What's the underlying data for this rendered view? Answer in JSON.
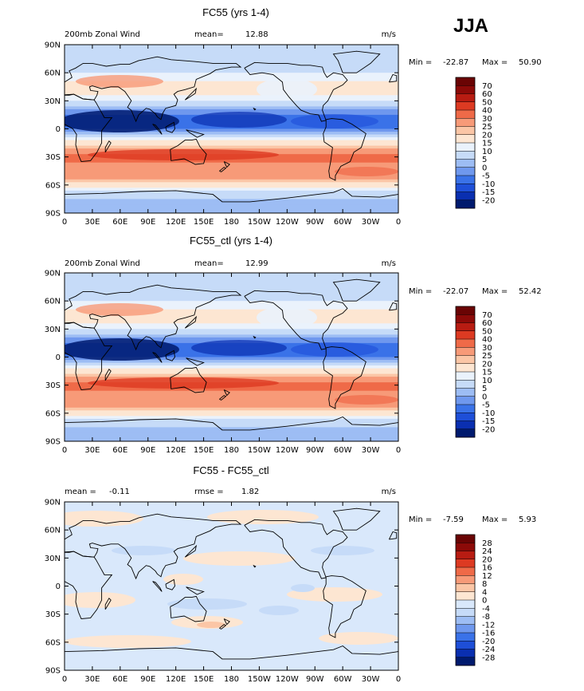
{
  "season": "JJA",
  "chart_data": [
    {
      "type": "heatmap",
      "title": "FC55 (yrs 1-4)",
      "left_label": "200mb Zonal Wind",
      "stat_label": "mean=",
      "stat_value": "12.88",
      "units": "m/s",
      "min_label": "Min =",
      "min_value": "-22.87",
      "max_label": "Max =",
      "max_value": "50.90",
      "levels": [
        "70",
        "60",
        "50",
        "40",
        "30",
        "25",
        "20",
        "15",
        "10",
        "5",
        "0",
        "-5",
        "-10",
        "-15",
        "-20"
      ],
      "x_ticks": [
        "0",
        "30E",
        "60E",
        "90E",
        "120E",
        "150E",
        "180",
        "150W",
        "120W",
        "90W",
        "60W",
        "30W",
        "0"
      ],
      "y_ticks": [
        "90N",
        "60N",
        "30N",
        "0",
        "30S",
        "60S",
        "90S"
      ],
      "xlim": [
        0,
        360
      ],
      "ylim": [
        -90,
        90
      ],
      "zonal_profile": [
        {
          "lat": 90,
          "value": 5
        },
        {
          "lat": 75,
          "value": 5
        },
        {
          "lat": 60,
          "value": 10
        },
        {
          "lat": 50,
          "value": 15
        },
        {
          "lat": 42,
          "value": 20
        },
        {
          "lat": 35,
          "value": 15
        },
        {
          "lat": 25,
          "value": 5
        },
        {
          "lat": 15,
          "value": -5
        },
        {
          "lat": 5,
          "value": -10
        },
        {
          "lat": 0,
          "value": -5
        },
        {
          "lat": -10,
          "value": 10
        },
        {
          "lat": -20,
          "value": 25
        },
        {
          "lat": -28,
          "value": 30
        },
        {
          "lat": -35,
          "value": 30
        },
        {
          "lat": -45,
          "value": 25
        },
        {
          "lat": -55,
          "value": 25
        },
        {
          "lat": -65,
          "value": 10
        },
        {
          "lat": -75,
          "value": 5
        },
        {
          "lat": -90,
          "value": 0
        }
      ]
    },
    {
      "type": "heatmap",
      "title": "FC55_ctl (yrs 1-4)",
      "left_label": "200mb Zonal Wind",
      "stat_label": "mean=",
      "stat_value": "12.99",
      "units": "m/s",
      "min_label": "Min =",
      "min_value": "-22.07",
      "max_label": "Max =",
      "max_value": "52.42",
      "levels": [
        "70",
        "60",
        "50",
        "40",
        "30",
        "25",
        "20",
        "15",
        "10",
        "5",
        "0",
        "-5",
        "-10",
        "-15",
        "-20"
      ],
      "x_ticks": [
        "0",
        "30E",
        "60E",
        "90E",
        "120E",
        "150E",
        "180",
        "150W",
        "120W",
        "90W",
        "60W",
        "30W",
        "0"
      ],
      "y_ticks": [
        "90N",
        "60N",
        "30N",
        "0",
        "30S",
        "60S",
        "90S"
      ],
      "xlim": [
        0,
        360
      ],
      "ylim": [
        -90,
        90
      ],
      "zonal_profile": [
        {
          "lat": 90,
          "value": 5
        },
        {
          "lat": 75,
          "value": 5
        },
        {
          "lat": 60,
          "value": 10
        },
        {
          "lat": 50,
          "value": 15
        },
        {
          "lat": 42,
          "value": 20
        },
        {
          "lat": 35,
          "value": 15
        },
        {
          "lat": 25,
          "value": 5
        },
        {
          "lat": 15,
          "value": -5
        },
        {
          "lat": 5,
          "value": -10
        },
        {
          "lat": 0,
          "value": -5
        },
        {
          "lat": -10,
          "value": 10
        },
        {
          "lat": -20,
          "value": 25
        },
        {
          "lat": -28,
          "value": 30
        },
        {
          "lat": -35,
          "value": 30
        },
        {
          "lat": -45,
          "value": 25
        },
        {
          "lat": -55,
          "value": 25
        },
        {
          "lat": -65,
          "value": 10
        },
        {
          "lat": -75,
          "value": 5
        },
        {
          "lat": -90,
          "value": 0
        }
      ]
    },
    {
      "type": "heatmap",
      "title": "FC55 - FC55_ctl",
      "left_label": "mean =",
      "left_value": "-0.11",
      "stat_label": "rmse =",
      "stat_value": "1.82",
      "units": "m/s",
      "min_label": "Min =",
      "min_value": "-7.59",
      "max_label": "Max =",
      "max_value": "5.93",
      "levels": [
        "28",
        "24",
        "20",
        "16",
        "12",
        "8",
        "4",
        "0",
        "-4",
        "-8",
        "-12",
        "-16",
        "-20",
        "-24",
        "-28"
      ],
      "x_ticks": [
        "0",
        "30E",
        "60E",
        "90E",
        "120E",
        "150E",
        "180",
        "150W",
        "120W",
        "90W",
        "60W",
        "30W",
        "0"
      ],
      "y_ticks": [
        "90N",
        "60N",
        "30N",
        "0",
        "30S",
        "60S",
        "90S"
      ],
      "xlim": [
        0,
        360
      ],
      "ylim": [
        -90,
        90
      ],
      "zonal_profile": [
        {
          "lat": 90,
          "value": 0
        },
        {
          "lat": 60,
          "value": -2
        },
        {
          "lat": 30,
          "value": -2
        },
        {
          "lat": 0,
          "value": -2
        },
        {
          "lat": -30,
          "value": 0
        },
        {
          "lat": -60,
          "value": -2
        },
        {
          "lat": -90,
          "value": 0
        }
      ]
    }
  ],
  "colors": {
    "abs_scale": [
      "#001a6e",
      "#0a2fb0",
      "#1e4fd8",
      "#3a72e8",
      "#6f98ee",
      "#9dbdf4",
      "#c6dbf8",
      "#eaf2fc",
      "#fde6d2",
      "#fbc6a6",
      "#f79a78",
      "#ef6a48",
      "#dd3a22",
      "#b81c12",
      "#8c0a08",
      "#6a0404"
    ],
    "diff_scale": [
      "#001a6e",
      "#0a2fb0",
      "#1e4fd8",
      "#3a72e8",
      "#6f98ee",
      "#9dbdf4",
      "#c6dbf8",
      "#d9e8fb",
      "#fde6d2",
      "#fbc6a6",
      "#f79a78",
      "#ef6a48",
      "#dd3a22",
      "#b81c12",
      "#8c0a08",
      "#6a0404"
    ]
  }
}
